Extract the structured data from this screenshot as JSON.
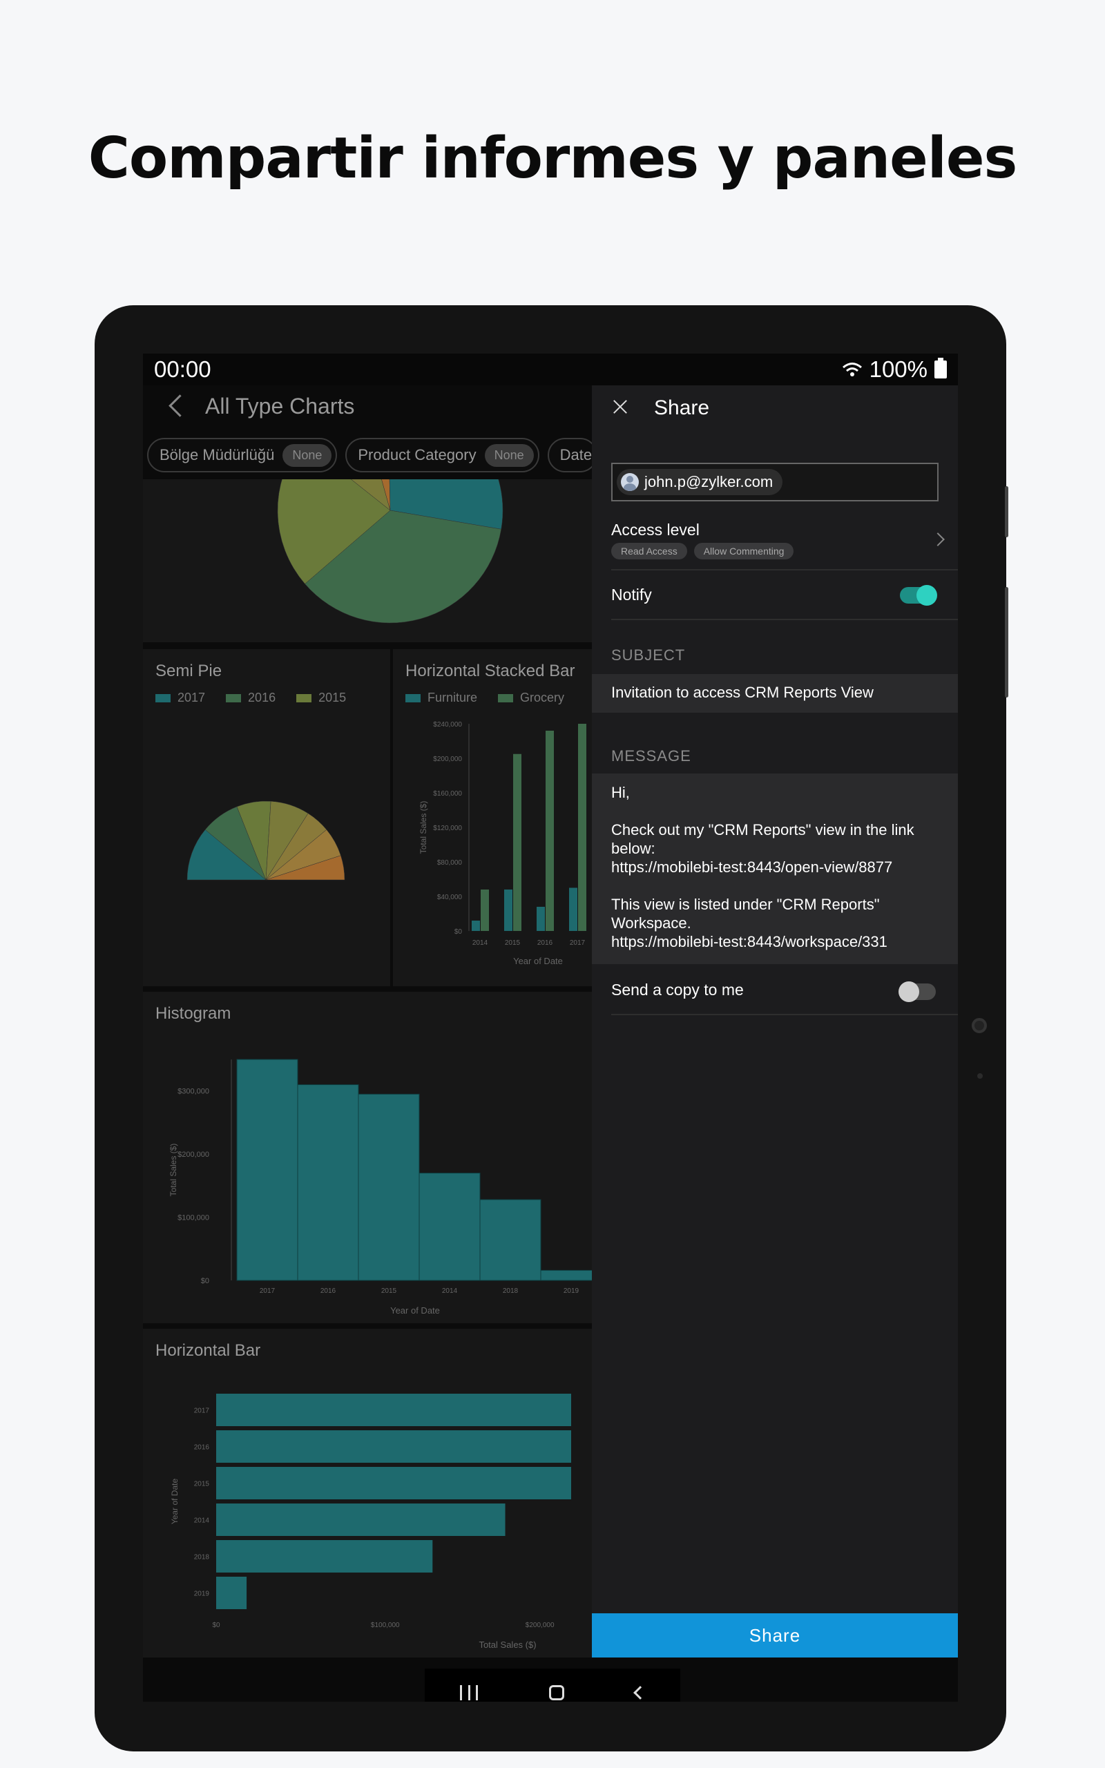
{
  "headline": "Compartir informes y paneles",
  "status": {
    "time": "00:00",
    "battery": "100%"
  },
  "dashboard": {
    "title": "All Type Charts",
    "filters": [
      {
        "label": "Bölge Müdürlüğü",
        "value": "None"
      },
      {
        "label": "Product Category",
        "value": "None"
      },
      {
        "label": "Date"
      }
    ]
  },
  "chart_data": [
    {
      "type": "pie",
      "title": "",
      "values": [
        10,
        4,
        28,
        36,
        22
      ],
      "colors": [
        "#7a7a3a",
        "#a56a2e",
        "#1e6a6e",
        "#3e6a4a",
        "#6a7a3a"
      ]
    },
    {
      "type": "pie",
      "title": "Semi Pie",
      "legend": [
        "2017",
        "2016",
        "2015"
      ],
      "values": [
        22,
        16,
        14,
        16,
        10,
        12,
        10
      ],
      "colors": [
        "#1e6a6e",
        "#3e6a4a",
        "#6a7a3a",
        "#7a7a3a",
        "#8a7a3a",
        "#9a7a3a",
        "#a56a2e"
      ]
    },
    {
      "type": "bar",
      "title": "Horizontal Stacked Bar",
      "legend": [
        "Furniture",
        "Grocery"
      ],
      "xlabel": "Year of Date",
      "ylabel": "Total Sales ($)",
      "y_ticks": [
        "$0",
        "$40,000",
        "$80,000",
        "$120,000",
        "$160,000",
        "$200,000",
        "$240,000"
      ],
      "ylim": [
        0,
        240000
      ],
      "categories": [
        "2014",
        "2015",
        "2016",
        "2017"
      ],
      "series": [
        {
          "name": "Furniture",
          "values": [
            12000,
            48000,
            28000,
            50000
          ]
        },
        {
          "name": "Grocery",
          "values": [
            48000,
            205000,
            232000,
            240000
          ]
        }
      ],
      "bars": [
        {
          "value": 12000,
          "color": "#1e6a6e"
        },
        {
          "value": 48000,
          "color": "#3e6a4a"
        },
        {
          "value": 48000,
          "color": "#1e6a6e"
        },
        {
          "value": 205000,
          "color": "#3e6a4a"
        },
        {
          "value": 28000,
          "color": "#1e6a6e"
        },
        {
          "value": 232000,
          "color": "#3e6a4a"
        },
        {
          "value": 50000,
          "color": "#1e6a6e"
        },
        {
          "value": 240000,
          "color": "#3e6a4a"
        }
      ]
    },
    {
      "type": "bar",
      "title": "Histogram",
      "xlabel": "Year of Date",
      "ylabel": "Total Sales ($)",
      "y_ticks": [
        "$0",
        "$100,000",
        "$200,000",
        "$300,000"
      ],
      "ylim": [
        0,
        350000
      ],
      "categories": [
        "2017",
        "2016",
        "2015",
        "2014",
        "2018",
        "2019"
      ],
      "values": [
        350000,
        310000,
        295000,
        170000,
        128000,
        16000
      ]
    },
    {
      "type": "bar",
      "title": "Horizontal Bar",
      "xlabel": "Total Sales ($)",
      "ylabel": "Year of Date",
      "x_ticks": [
        "$0",
        "$100,000",
        "$200,000"
      ],
      "xlim": [
        0,
        210000
      ],
      "categories": [
        "2017",
        "2016",
        "2015",
        "2014",
        "2018",
        "2019"
      ],
      "values": [
        210000,
        210000,
        210000,
        171000,
        128000,
        18000
      ]
    }
  ],
  "share": {
    "title": "Share",
    "email": "john.p@zylker.com",
    "access_label": "Access level",
    "access_tags": [
      "Read Access",
      "Allow Commenting"
    ],
    "notify_label": "Notify",
    "subject_label": "SUBJECT",
    "subject_text": "Invitation to access CRM Reports View",
    "message_label": "MESSAGE",
    "message": {
      "greeting": "Hi,",
      "line1": "Check out my \"CRM Reports\" view in the link below:",
      "link1": "https://mobilebi-test:8443/open-view/8877",
      "line2": "This view is listed under \"CRM Reports\" Workspace.",
      "link2": "https://mobilebi-test:8443/workspace/331"
    },
    "copy_label": "Send a copy to me",
    "button": "Share"
  },
  "colors": {
    "accent": "#1194d9",
    "teal": "#1e6a6e",
    "toggle_on": "#2ed1c1"
  }
}
